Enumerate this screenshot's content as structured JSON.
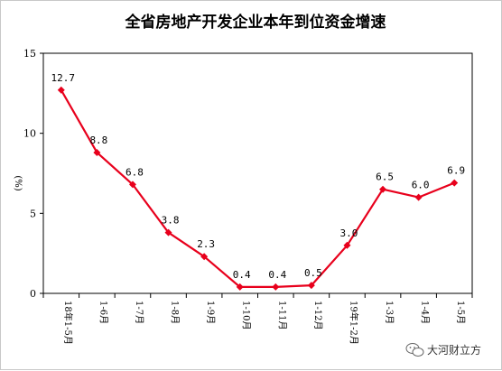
{
  "chart_data": {
    "type": "line",
    "title": "全省房地产开发企业本年到位资金增速",
    "ylabel": "(%)",
    "xlabel": "",
    "ylim": [
      0,
      15
    ],
    "yticks": [
      "0",
      "5",
      "10",
      "15"
    ],
    "categories": [
      "18年1-5月",
      "1-6月",
      "1-7月",
      "1-8月",
      "1-9月",
      "1-10月",
      "1-11月",
      "1-12月",
      "19年1-2月",
      "1-3月",
      "1-4月",
      "1-5月"
    ],
    "series": [
      {
        "values": [
          12.7,
          8.8,
          6.8,
          3.8,
          2.3,
          0.4,
          0.4,
          0.5,
          3.0,
          6.5,
          6.0,
          6.9
        ],
        "labels": [
          "12.7",
          "8.8",
          "6.8",
          "3.8",
          "2.3",
          "0.4",
          "0.4",
          "0.5",
          "3.0",
          "6.5",
          "6.0",
          "6.9"
        ],
        "color": "#e8001c",
        "marker": "diamond"
      }
    ],
    "grid": false,
    "legend": "none"
  },
  "watermark": {
    "icon": "wechat-icon",
    "text": "大河财立方"
  }
}
